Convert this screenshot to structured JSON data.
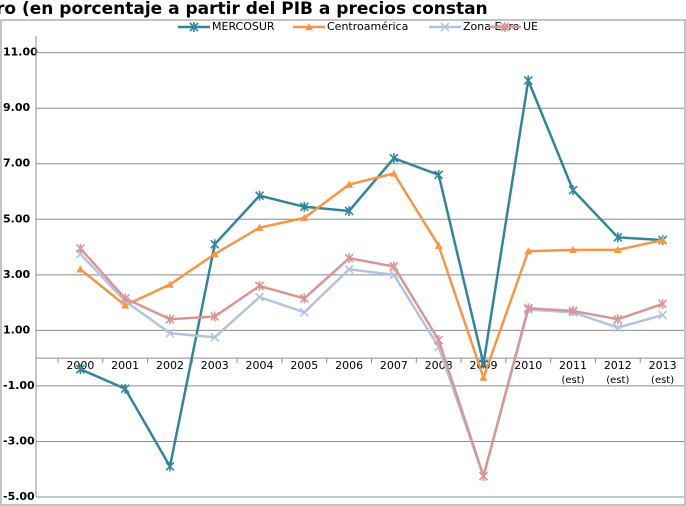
{
  "chart_data": {
    "type": "line",
    "title": "ro (en porcentaje a partir del PIB a precios constan",
    "categories": [
      "2000",
      "2001",
      "2002",
      "2003",
      "2004",
      "2005",
      "2006",
      "2007",
      "2008",
      "2009",
      "2010",
      "2011 (est)",
      "2012 (est)",
      "2013 (est)"
    ],
    "series": [
      {
        "name": "MERCOSUR",
        "color": "#31859c",
        "marker": "star",
        "values": [
          -0.4,
          -1.1,
          -3.9,
          4.1,
          5.85,
          5.45,
          5.3,
          7.2,
          6.6,
          -0.2,
          10.0,
          6.05,
          4.35,
          4.25
        ]
      },
      {
        "name": "Centroamérica",
        "color": "#f79646",
        "marker": "triangle",
        "values": [
          3.2,
          1.9,
          2.65,
          3.75,
          4.7,
          5.05,
          6.25,
          6.65,
          4.05,
          -0.7,
          3.85,
          3.9,
          3.9,
          4.25
        ]
      },
      {
        "name": "Zona Euro",
        "color": "#b3c4e0",
        "marker": "x",
        "values": [
          3.75,
          2.05,
          0.9,
          0.75,
          2.2,
          1.65,
          3.2,
          3.0,
          0.4,
          -4.25,
          1.75,
          1.65,
          1.1,
          1.55
        ]
      },
      {
        "name": "UE",
        "color": "#d99694",
        "marker": "star",
        "values": [
          3.95,
          2.15,
          1.4,
          1.5,
          2.6,
          2.15,
          3.6,
          3.3,
          0.65,
          -4.25,
          1.8,
          1.7,
          1.4,
          1.95
        ]
      }
    ],
    "ylim": [
      -5,
      11.6
    ],
    "yticks": [
      {
        "value": -5,
        "label": "-5.00"
      },
      {
        "value": -3,
        "label": "-3.00"
      },
      {
        "value": -1,
        "label": "-1.00"
      },
      {
        "value": 1,
        "label": "1.00"
      },
      {
        "value": 3,
        "label": "3.00"
      },
      {
        "value": 5,
        "label": "5.00"
      },
      {
        "value": 7,
        "label": "7.00"
      },
      {
        "value": 9,
        "label": "9.00"
      },
      {
        "value": 11,
        "label": "11.00"
      }
    ],
    "grid": true,
    "legend": "top"
  }
}
